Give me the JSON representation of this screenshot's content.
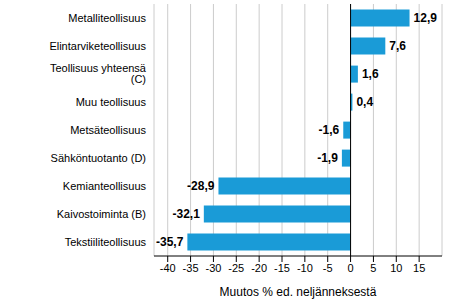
{
  "chart_data": {
    "type": "bar",
    "orientation": "horizontal",
    "categories": [
      "Metalliteollisuus",
      "Elintarviketeollisuus",
      "Teollisuus yhteensä (C)",
      "Muu teollisuus",
      "Metsäteollisuus",
      "Sähköntuotanto (D)",
      "Kemianteollisuus",
      "Kaivostoiminta (B)",
      "Tekstiiliteollisuus"
    ],
    "values": [
      12.9,
      7.6,
      1.6,
      0.4,
      -1.6,
      -1.9,
      -28.9,
      -32.1,
      -35.7
    ],
    "value_labels": [
      "12,9",
      "7,6",
      "1,6",
      "0,4",
      "-1,6",
      "-1,9",
      "-28,9",
      "-32,1",
      "-35,7"
    ],
    "data_labels": true,
    "color": "#1a9bd7",
    "xlim": [
      -43,
      20
    ],
    "xticks": [
      -40,
      -35,
      -30,
      -25,
      -20,
      -15,
      -10,
      -5,
      0,
      5,
      10,
      15
    ],
    "x_label": "Muutos % ed. neljänneksestä",
    "grid": true
  }
}
